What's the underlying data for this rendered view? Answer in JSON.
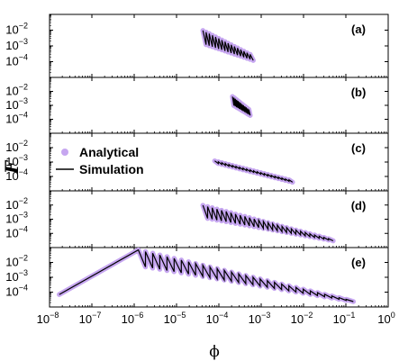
{
  "chart_data": {
    "type": "line",
    "xlabel": "ϕ",
    "ylabel": "F",
    "xscale": "log",
    "yscale": "log",
    "xlim": [
      1e-08,
      1
    ],
    "x_ticks": [
      "10^-8",
      "10^-7",
      "10^-6",
      "10^-5",
      "10^-4",
      "10^-3",
      "10^-2",
      "10^-1",
      "10^0"
    ],
    "y_ticks": [
      "10^-2",
      "10^-3",
      "10^-4"
    ],
    "ylim": [
      1e-05,
      0.1
    ],
    "legend": {
      "placement": "panel (c), left",
      "entries": [
        {
          "name": "Analytical",
          "style": "marker",
          "color": "#c6a6f0"
        },
        {
          "name": "Simulation",
          "style": "line",
          "color": "#000000"
        }
      ]
    },
    "panels": [
      {
        "label": "(a)",
        "sawtooth": {
          "x_start": 4.2e-05,
          "x_end": 0.00065,
          "peak_start": 0.0095,
          "peak_end": 0.00023,
          "trough_start": 0.0014,
          "trough_end": 0.00012,
          "cycles": 16
        },
        "series": [
          {
            "name": "Analytical",
            "x": [
              4.2e-05,
              0.00065
            ],
            "y": [
              0.0095,
              0.00012
            ]
          },
          {
            "name": "Simulation",
            "x": [
              4.2e-05,
              0.00065
            ],
            "y": [
              0.0095,
              0.00012
            ]
          }
        ]
      },
      {
        "label": "(b)",
        "sawtooth": {
          "x_start": 0.00021,
          "x_end": 0.00055,
          "peak_start": 0.0042,
          "peak_end": 0.00042,
          "trough_start": 0.0011,
          "trough_end": 0.00019,
          "cycles": 13
        },
        "series": [
          {
            "name": "Analytical",
            "x": [
              0.00021,
              0.00055
            ],
            "y": [
              0.0042,
              0.00019
            ]
          },
          {
            "name": "Simulation",
            "x": [
              0.00021,
              0.00055
            ],
            "y": [
              0.0042,
              0.00019
            ]
          }
        ]
      },
      {
        "label": "(c)",
        "sawtooth": {
          "x_start": 8e-05,
          "x_end": 0.0055,
          "peak_start": 0.0012,
          "peak_end": 5e-05,
          "trough_start": 0.0009,
          "trough_end": 4e-05,
          "cycles": 22
        },
        "series": [
          {
            "name": "Analytical",
            "x": [
              8e-05,
              0.0055
            ],
            "y": [
              0.0012,
              4e-05
            ]
          },
          {
            "name": "Simulation",
            "x": [
              8e-05,
              0.0055
            ],
            "y": [
              0.0012,
              4e-05
            ]
          }
        ]
      },
      {
        "label": "(d)",
        "sawtooth": {
          "x_start": 4.2e-05,
          "x_end": 0.05,
          "peak_start": 0.0095,
          "peak_end": 3.5e-05,
          "trough_start": 0.0013,
          "trough_end": 3e-05,
          "cycles": 28
        },
        "series": [
          {
            "name": "Analytical",
            "x": [
              4.2e-05,
              0.05
            ],
            "y": [
              0.0095,
              3e-05
            ]
          },
          {
            "name": "Simulation",
            "x": [
              4.2e-05,
              0.05
            ],
            "y": [
              0.0095,
              3e-05
            ]
          }
        ]
      },
      {
        "label": "(e)",
        "lead_in": {
          "x": [
            1.7e-08,
            1.25e-06
          ],
          "y": [
            7e-05,
            0.07
          ]
        },
        "sawtooth": {
          "x_start": 1.25e-06,
          "x_end": 0.15,
          "peak_start": 0.07,
          "peak_end": 2.5e-05,
          "trough_start": 0.006,
          "trough_end": 2.3e-05,
          "cycles": 30
        },
        "series": [
          {
            "name": "Analytical",
            "x": [
              1.7e-08,
              1.25e-06,
              0.15
            ],
            "y": [
              7e-05,
              0.07,
              2.3e-05
            ]
          },
          {
            "name": "Simulation",
            "x": [
              1.7e-08,
              1.25e-06,
              0.15
            ],
            "y": [
              7e-05,
              0.07,
              2.3e-05
            ]
          }
        ]
      }
    ]
  }
}
